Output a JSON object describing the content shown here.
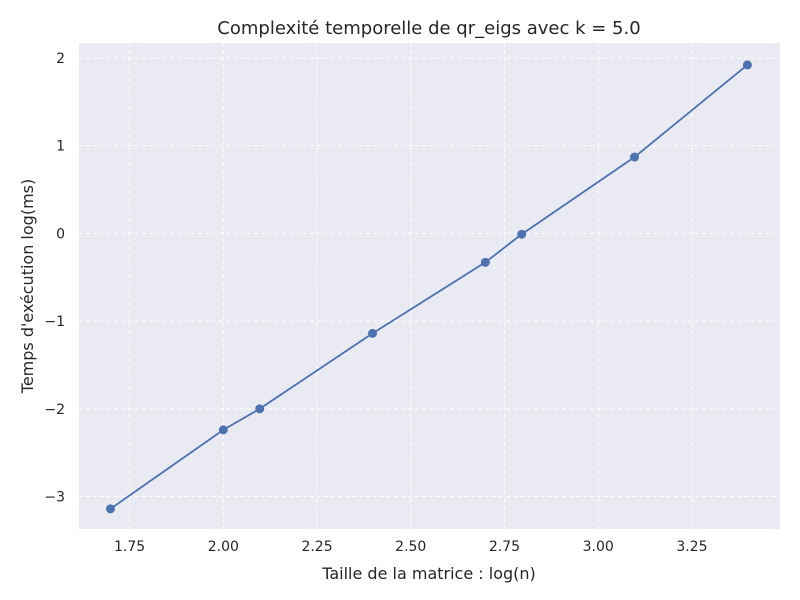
{
  "chart_data": {
    "type": "line",
    "title": "Complexité temporelle de qr_eigs avec k = 5.0",
    "xlabel": "Taille de la matrice : log(n)",
    "ylabel": "Temps d'exécution log(ms)",
    "xlim": [
      1.615,
      3.485
    ],
    "ylim": [
      -3.37,
      2.17
    ],
    "xticks": [
      1.75,
      2.0,
      2.25,
      2.5,
      2.75,
      3.0,
      3.25
    ],
    "xtick_labels": [
      "1.75",
      "2.00",
      "2.25",
      "2.50",
      "2.75",
      "3.00",
      "3.25"
    ],
    "yticks": [
      -3,
      -2,
      -1,
      0,
      1,
      2
    ],
    "ytick_labels": [
      "−3",
      "−2",
      "−1",
      "0",
      "1",
      "2"
    ],
    "grid": true,
    "series": [
      {
        "x": [
          1.699,
          2.0,
          2.097,
          2.398,
          2.699,
          2.796,
          3.097,
          3.398
        ],
        "y": [
          -3.14,
          -2.24,
          -2.0,
          -1.14,
          -0.33,
          -0.01,
          0.87,
          1.92
        ],
        "color": "#4c72b0"
      }
    ],
    "colors": {
      "background": "#eaeaf2",
      "grid": "#ffffff",
      "line": "#4c72b0"
    }
  }
}
